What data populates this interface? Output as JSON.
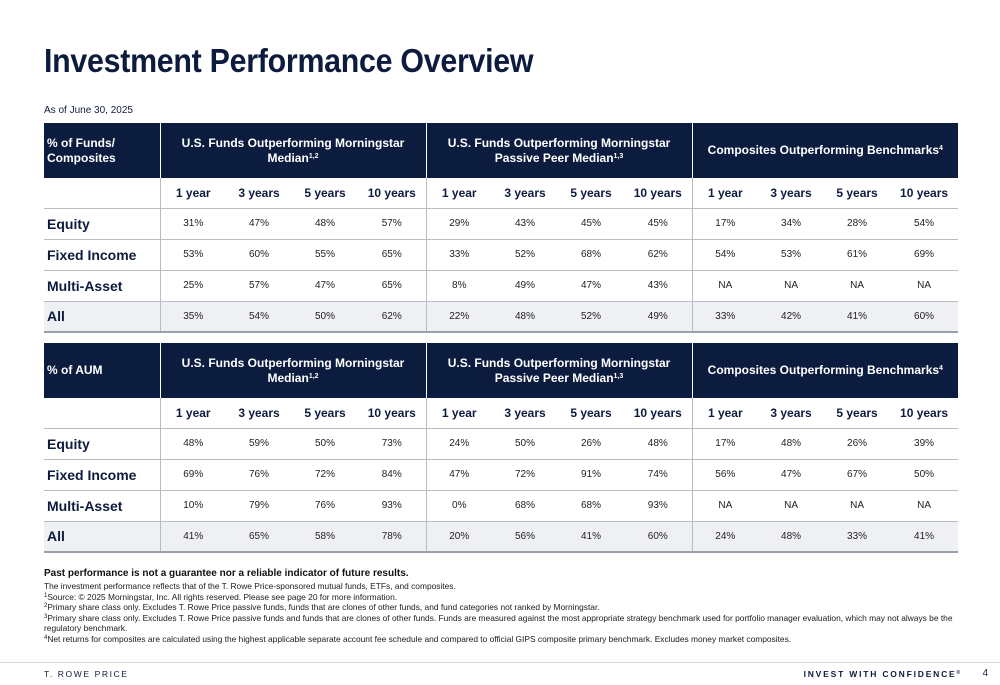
{
  "title": "Investment Performance Overview",
  "as_of": "As of June 30, 2025",
  "years": [
    "1 year",
    "3 years",
    "5 years",
    "10 years"
  ],
  "group_titles": {
    "g1": "U.S. Funds Outperforming Morningstar Median",
    "g1_sup": "1,2",
    "g2": "U.S. Funds Outperforming Morningstar Passive Peer Median",
    "g2_sup": "1,3",
    "g3": "Composites Outperforming Benchmarks",
    "g3_sup": "4"
  },
  "tables": [
    {
      "label": "% of Funds/ Composites",
      "rows": [
        {
          "label": "Equity",
          "values": [
            "31%",
            "47%",
            "48%",
            "57%",
            "29%",
            "43%",
            "45%",
            "45%",
            "17%",
            "34%",
            "28%",
            "54%"
          ]
        },
        {
          "label": "Fixed Income",
          "values": [
            "53%",
            "60%",
            "55%",
            "65%",
            "33%",
            "52%",
            "68%",
            "62%",
            "54%",
            "53%",
            "61%",
            "69%"
          ]
        },
        {
          "label": "Multi-Asset",
          "values": [
            "25%",
            "57%",
            "47%",
            "65%",
            "8%",
            "49%",
            "47%",
            "43%",
            "NA",
            "NA",
            "NA",
            "NA"
          ]
        },
        {
          "label": "All",
          "values": [
            "35%",
            "54%",
            "50%",
            "62%",
            "22%",
            "48%",
            "52%",
            "49%",
            "33%",
            "42%",
            "41%",
            "60%"
          ]
        }
      ]
    },
    {
      "label": "% of AUM",
      "rows": [
        {
          "label": "Equity",
          "values": [
            "48%",
            "59%",
            "50%",
            "73%",
            "24%",
            "50%",
            "26%",
            "48%",
            "17%",
            "48%",
            "26%",
            "39%"
          ]
        },
        {
          "label": "Fixed Income",
          "values": [
            "69%",
            "76%",
            "72%",
            "84%",
            "47%",
            "72%",
            "91%",
            "74%",
            "56%",
            "47%",
            "67%",
            "50%"
          ]
        },
        {
          "label": "Multi-Asset",
          "values": [
            "10%",
            "79%",
            "76%",
            "93%",
            "0%",
            "68%",
            "68%",
            "93%",
            "NA",
            "NA",
            "NA",
            "NA"
          ]
        },
        {
          "label": "All",
          "values": [
            "41%",
            "65%",
            "58%",
            "78%",
            "20%",
            "56%",
            "41%",
            "60%",
            "24%",
            "48%",
            "33%",
            "41%"
          ]
        }
      ]
    }
  ],
  "notes": {
    "bold": "Past performance is not a guarantee nor a reliable indicator of future results.",
    "intro": "The investment performance reflects that of the T. Rowe Price-sponsored mutual funds, ETFs, and composites.",
    "footnotes": [
      {
        "num": "1",
        "text": "Source: © 2025 Morningstar, Inc. All rights reserved. Please see page 20 for more information."
      },
      {
        "num": "2",
        "text": "Primary share class only. Excludes T. Rowe Price passive funds, funds that are clones of other funds, and fund categories not ranked by Morningstar."
      },
      {
        "num": "3",
        "text": "Primary share class only. Excludes T. Rowe Price passive funds and funds that are clones of other funds. Funds are measured against the most appropriate strategy benchmark used for portfolio manager evaluation, which may not always be the regulatory benchmark."
      },
      {
        "num": "4",
        "text": "Net returns for composites are calculated using the highest applicable separate account fee schedule and compared to official GIPS composite primary benchmark. Excludes money market composites."
      }
    ]
  },
  "footer": {
    "brand": "T. ROWE PRICE",
    "tagline": "INVEST WITH CONFIDENCE",
    "tagline_mark": "®",
    "page": "4"
  }
}
